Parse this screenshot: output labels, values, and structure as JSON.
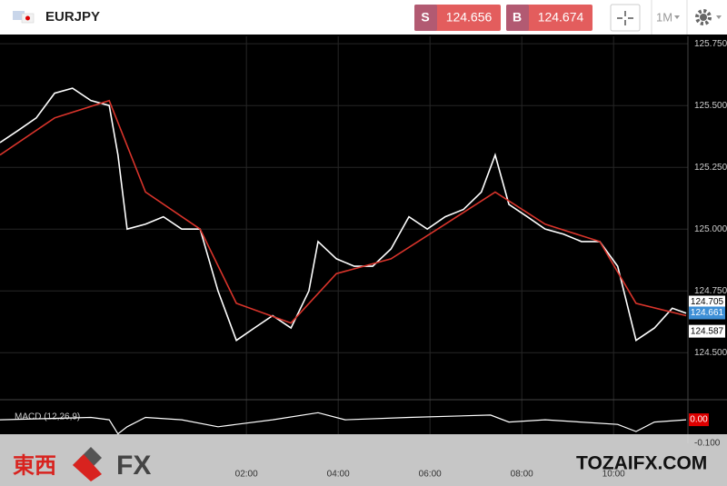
{
  "header": {
    "symbol": "EURJPY",
    "sell_label": "S",
    "sell_price": "124.656",
    "buy_label": "B",
    "buy_price": "124.674",
    "timeframe": "1M"
  },
  "chart_data": [
    {
      "type": "line",
      "series": [
        {
          "color": "#ffffff",
          "x": [
            -3.37,
            -2.97,
            -2.58,
            -2.18,
            -1.79,
            -1.39,
            -0.99,
            -0.8,
            -0.6,
            -0.2,
            0.19,
            0.59,
            0.99,
            1.38,
            1.78,
            2.17,
            2.57,
            2.97,
            3.36,
            3.56,
            3.96,
            4.35,
            4.75,
            5.15,
            5.54,
            5.94,
            6.33,
            6.73,
            7.12,
            7.42,
            7.72,
            8.12,
            8.51,
            8.91,
            9.3,
            9.7,
            10.09,
            10.49,
            10.89,
            11.28,
            11.58
          ],
          "values": [
            125.35,
            125.4,
            125.45,
            125.55,
            125.57,
            125.52,
            125.5,
            125.3,
            125.0,
            125.02,
            125.05,
            125.0,
            125.0,
            124.75,
            124.55,
            124.6,
            124.65,
            124.6,
            124.75,
            124.95,
            124.88,
            124.85,
            124.85,
            124.92,
            125.05,
            125.0,
            125.05,
            125.08,
            125.15,
            125.3,
            125.1,
            125.05,
            125.0,
            124.98,
            124.95,
            124.95,
            124.85,
            124.55,
            124.6,
            124.68,
            124.66
          ]
        },
        {
          "color": "#d9342b",
          "x": [
            -3.37,
            -2.18,
            -0.99,
            -0.2,
            0.99,
            1.78,
            2.97,
            3.96,
            5.15,
            6.33,
            7.42,
            8.51,
            9.7,
            10.49,
            11.58
          ],
          "values": [
            125.3,
            125.45,
            125.52,
            125.15,
            125.0,
            124.7,
            124.62,
            124.82,
            124.88,
            125.02,
            125.15,
            125.02,
            124.95,
            124.7,
            124.65
          ]
        }
      ],
      "xlim": [
        -3.37,
        11.62
      ],
      "ylim": [
        124.31,
        125.78
      ],
      "xticks": [
        {
          "value": 2,
          "label": "02:00"
        },
        {
          "value": 4,
          "label": "04:00"
        },
        {
          "value": 6,
          "label": "06:00"
        },
        {
          "value": 8,
          "label": "08:00"
        },
        {
          "value": 10,
          "label": "10:00"
        }
      ],
      "yticks": [
        {
          "value": 124.5,
          "label": "124.500"
        },
        {
          "value": 124.75,
          "label": "124.750"
        },
        {
          "value": 125,
          "label": "125.000"
        },
        {
          "value": 125.25,
          "label": "125.250"
        },
        {
          "value": 125.5,
          "label": "125.500"
        },
        {
          "value": 125.75,
          "label": "125.750"
        }
      ],
      "grid": true,
      "price_labels": [
        {
          "value": 124.705,
          "label": "124.705",
          "color": "#ffffff"
        },
        {
          "value": 124.661,
          "label": "124.661",
          "color": "#3d8fd6"
        },
        {
          "value": 124.587,
          "label": "124.587",
          "color": "#ffffff"
        }
      ]
    },
    {
      "type": "line",
      "title": "MACD (12,26,9)",
      "series": [
        {
          "color": "#ffffff",
          "x": [
            -3.37,
            -1.39,
            -0.99,
            -0.8,
            -0.6,
            -0.2,
            0.59,
            1.38,
            1.78,
            2.57,
            3.56,
            4.15,
            5.54,
            7.32,
            7.72,
            8.51,
            10.09,
            10.49,
            10.89,
            11.58
          ],
          "values": [
            0.0,
            0.01,
            0.0,
            -0.06,
            -0.03,
            0.01,
            0.0,
            -0.03,
            -0.02,
            0.0,
            0.03,
            0.0,
            0.01,
            0.02,
            -0.01,
            0.0,
            -0.02,
            -0.05,
            -0.01,
            0.0
          ]
        }
      ],
      "xlim": [
        -3.37,
        11.62
      ],
      "ylim": [
        -0.1,
        0.085
      ],
      "yticks": [
        {
          "value": -0.1,
          "label": "-0.100"
        }
      ],
      "last_value": 0,
      "last_value_label": "0.00"
    }
  ],
  "footer": {
    "logo_cjk": "東西",
    "logo_fx": "FX",
    "site": "TOZAIFX.COM"
  }
}
